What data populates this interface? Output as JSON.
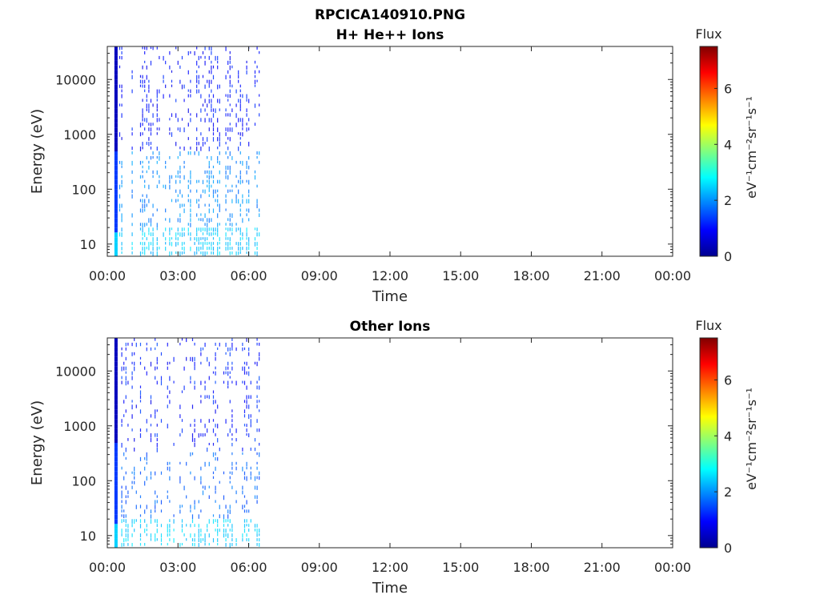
{
  "figure_title": "RPCICA140910.PNG",
  "chart_data": [
    {
      "type": "heatmap",
      "title": "H+ He++ Ions",
      "xlabel": "Time",
      "ylabel": "Energy (eV)",
      "x_tick_labels": [
        "00:00",
        "03:00",
        "06:00",
        "09:00",
        "12:00",
        "15:00",
        "18:00",
        "21:00",
        "00:00"
      ],
      "x_range_hours": [
        0,
        24
      ],
      "y_scale": "log",
      "y_ticks": [
        10,
        100,
        1000,
        10000
      ],
      "y_tick_labels": [
        "10",
        "100",
        "1000",
        "10000"
      ],
      "y_range": [
        6,
        40000
      ],
      "data_x_range_hours": [
        0.2,
        6.5
      ],
      "grid": false,
      "colorbar": {
        "label": "Flux",
        "units": "eV⁻¹cm⁻²sr⁻¹s⁻¹",
        "ticks": [
          0,
          2,
          4,
          6
        ],
        "range": [
          0,
          7.5
        ],
        "colormap": "jet"
      }
    },
    {
      "type": "heatmap",
      "title": "Other Ions",
      "xlabel": "Time",
      "ylabel": "Energy (eV)",
      "x_tick_labels": [
        "00:00",
        "03:00",
        "06:00",
        "09:00",
        "12:00",
        "15:00",
        "18:00",
        "21:00",
        "00:00"
      ],
      "x_range_hours": [
        0,
        24
      ],
      "y_scale": "log",
      "y_ticks": [
        10,
        100,
        1000,
        10000
      ],
      "y_tick_labels": [
        "10",
        "100",
        "1000",
        "10000"
      ],
      "y_range": [
        6,
        40000
      ],
      "data_x_range_hours": [
        0.2,
        6.5
      ],
      "grid": false,
      "colorbar": {
        "label": "Flux",
        "units": "eV⁻¹cm⁻²sr⁻¹s⁻¹",
        "ticks": [
          0,
          2,
          4,
          6
        ],
        "range": [
          0,
          7.5
        ],
        "colormap": "jet"
      }
    }
  ]
}
